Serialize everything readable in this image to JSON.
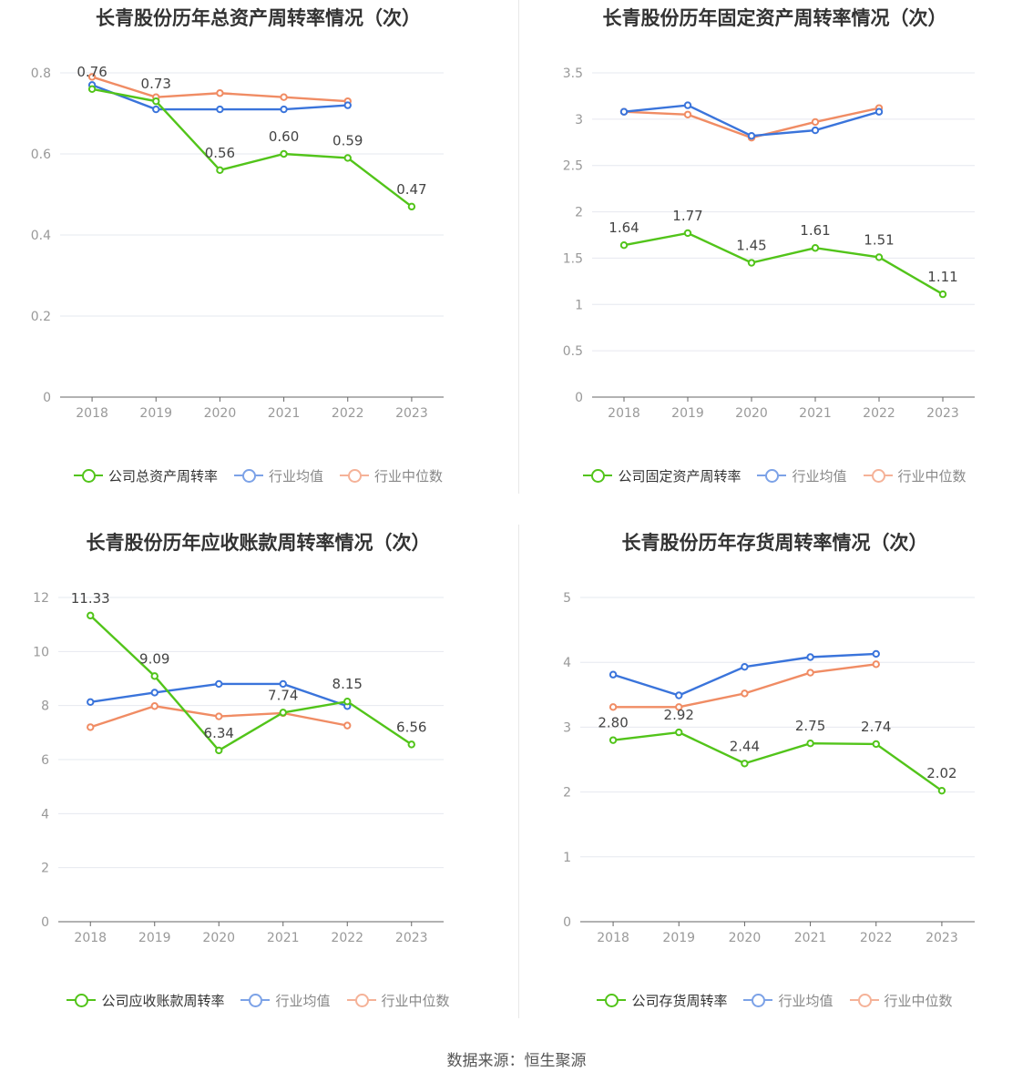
{
  "source_text": "数据来源：恒生聚源",
  "colors": {
    "company": "#52c41a",
    "avg": "#3a74db",
    "median": "#f08c64",
    "grid": "#e6e8ef",
    "axis": "#999999"
  },
  "chart_data": [
    {
      "type": "line",
      "title": "长青股份历年总资产周转率情况（次）",
      "categories": [
        "2018",
        "2019",
        "2020",
        "2021",
        "2022",
        "2023"
      ],
      "ylim": [
        0,
        0.8
      ],
      "yticks": [
        "0",
        "0.2",
        "0.4",
        "0.6",
        "0.8"
      ],
      "ytick_values": [
        0,
        0.2,
        0.4,
        0.6,
        0.8
      ],
      "grid": true,
      "legend_position": "bottom",
      "series": [
        {
          "name": "公司总资产周转率",
          "key": "company",
          "values": [
            0.76,
            0.73,
            0.56,
            0.6,
            0.59,
            0.47
          ],
          "labels": [
            "0.76",
            "0.73",
            "0.56",
            "0.60",
            "0.59",
            "0.47"
          ]
        },
        {
          "name": "行业均值",
          "key": "avg",
          "values": [
            0.77,
            0.71,
            0.71,
            0.71,
            0.72,
            null
          ]
        },
        {
          "name": "行业中位数",
          "key": "median",
          "values": [
            0.79,
            0.74,
            0.75,
            0.74,
            0.73,
            null
          ]
        }
      ]
    },
    {
      "type": "line",
      "title": "长青股份历年固定资产周转率情况（次）",
      "categories": [
        "2018",
        "2019",
        "2020",
        "2021",
        "2022",
        "2023"
      ],
      "ylim": [
        0,
        3.5
      ],
      "yticks": [
        "0",
        "0.5",
        "1",
        "1.5",
        "2",
        "2.5",
        "3",
        "3.5"
      ],
      "ytick_values": [
        0,
        0.5,
        1,
        1.5,
        2,
        2.5,
        3,
        3.5
      ],
      "grid": true,
      "legend_position": "bottom",
      "series": [
        {
          "name": "公司固定资产周转率",
          "key": "company",
          "values": [
            1.64,
            1.77,
            1.45,
            1.61,
            1.51,
            1.11
          ],
          "labels": [
            "1.64",
            "1.77",
            "1.45",
            "1.61",
            "1.51",
            "1.11"
          ]
        },
        {
          "name": "行业均值",
          "key": "avg",
          "values": [
            3.08,
            3.15,
            2.82,
            2.88,
            3.08,
            null
          ]
        },
        {
          "name": "行业中位数",
          "key": "median",
          "values": [
            3.08,
            3.05,
            2.8,
            2.97,
            3.12,
            null
          ]
        }
      ]
    },
    {
      "type": "line",
      "title": "长青股份历年应收账款周转率情况（次）",
      "categories": [
        "2018",
        "2019",
        "2020",
        "2021",
        "2022",
        "2023"
      ],
      "ylim": [
        0,
        12
      ],
      "yticks": [
        "0",
        "2",
        "4",
        "6",
        "8",
        "10",
        "12"
      ],
      "ytick_values": [
        0,
        2,
        4,
        6,
        8,
        10,
        12
      ],
      "grid": true,
      "legend_position": "bottom",
      "series": [
        {
          "name": "公司应收账款周转率",
          "key": "company",
          "values": [
            11.33,
            9.09,
            6.34,
            7.74,
            8.15,
            6.56
          ],
          "labels": [
            "11.33",
            "9.09",
            "6.34",
            "7.74",
            "8.15",
            "6.56"
          ]
        },
        {
          "name": "行业均值",
          "key": "avg",
          "values": [
            8.13,
            8.48,
            8.8,
            8.8,
            7.98,
            null
          ]
        },
        {
          "name": "行业中位数",
          "key": "median",
          "values": [
            7.2,
            7.98,
            7.6,
            7.72,
            7.26,
            null
          ]
        }
      ]
    },
    {
      "type": "line",
      "title": "长青股份历年存货周转率情况（次）",
      "categories": [
        "2018",
        "2019",
        "2020",
        "2021",
        "2022",
        "2023"
      ],
      "ylim": [
        0,
        5
      ],
      "yticks": [
        "0",
        "1",
        "2",
        "3",
        "4",
        "5"
      ],
      "ytick_values": [
        0,
        1,
        2,
        3,
        4,
        5
      ],
      "grid": true,
      "legend_position": "bottom",
      "series": [
        {
          "name": "公司存货周转率",
          "key": "company",
          "values": [
            2.8,
            2.92,
            2.44,
            2.75,
            2.74,
            2.02
          ],
          "labels": [
            "2.80",
            "2.92",
            "2.44",
            "2.75",
            "2.74",
            "2.02"
          ]
        },
        {
          "name": "行业均值",
          "key": "avg",
          "values": [
            3.81,
            3.49,
            3.93,
            4.08,
            4.13,
            null
          ]
        },
        {
          "name": "行业中位数",
          "key": "median",
          "values": [
            3.31,
            3.31,
            3.52,
            3.84,
            3.97,
            null
          ]
        }
      ]
    }
  ]
}
